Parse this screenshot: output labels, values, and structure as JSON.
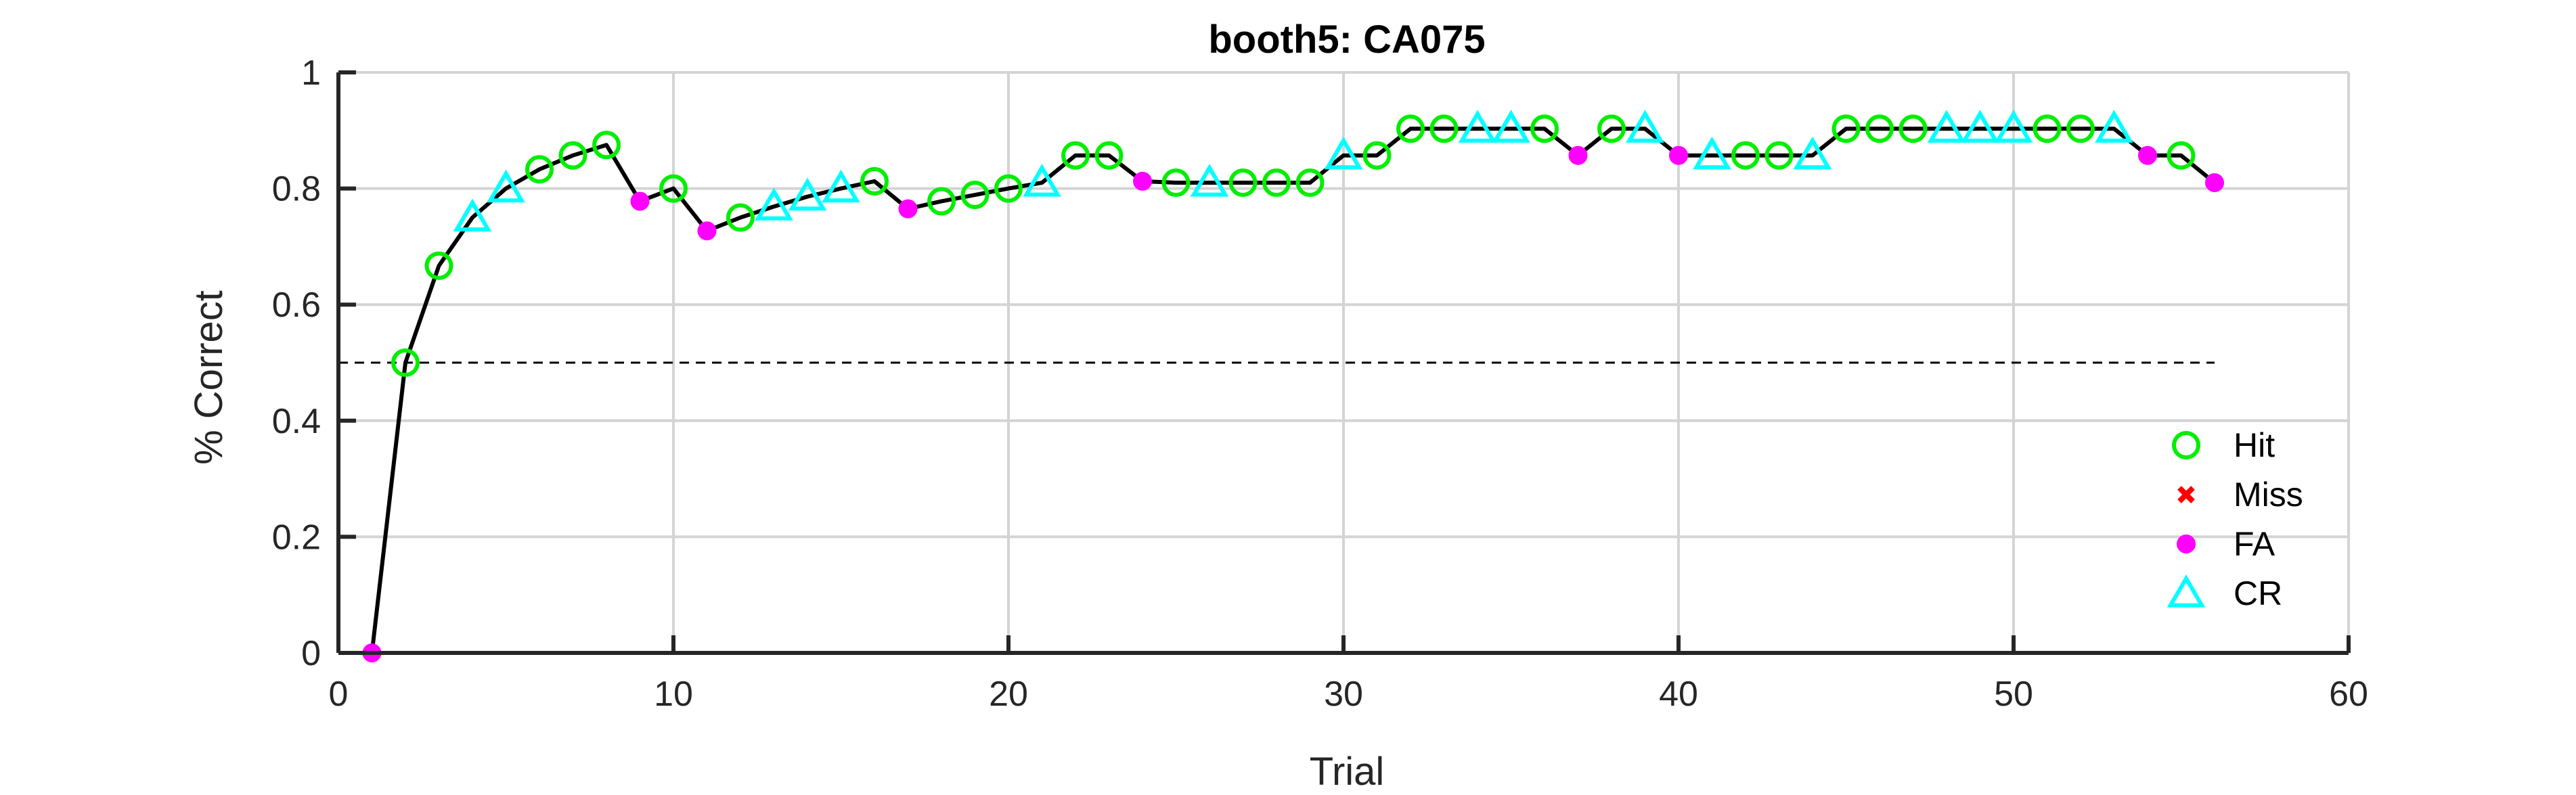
{
  "chart_data": {
    "type": "scatter",
    "title": "booth5: CA075",
    "xlabel": "Trial",
    "ylabel": "% Correct",
    "xlim": [
      0,
      60
    ],
    "ylim": [
      0,
      1
    ],
    "xticks": [
      0,
      10,
      20,
      30,
      40,
      50,
      60
    ],
    "xtick_labels": [
      "0",
      "10",
      "20",
      "30",
      "40",
      "50",
      "60"
    ],
    "yticks": [
      0,
      0.2,
      0.4,
      0.6,
      0.8,
      1
    ],
    "ytick_labels": [
      "0",
      "0.2",
      "0.4",
      "0.6",
      "0.8",
      "1"
    ],
    "grid": true,
    "chance_line": 0.5,
    "legend_position": "bottom-right",
    "colors": {
      "line": "#000000",
      "Hit": "#00ee00",
      "Miss": "#ff0000",
      "FA": "#ff00ff",
      "CR": "#00ffff",
      "grid": "#d4d4d4",
      "axis": "#262626"
    },
    "legend": [
      {
        "label": "Hit",
        "marker": "circle",
        "color": "#00ee00"
      },
      {
        "label": "Miss",
        "marker": "x",
        "color": "#ff0000"
      },
      {
        "label": "FA",
        "marker": "dot",
        "color": "#ff00ff"
      },
      {
        "label": "CR",
        "marker": "triangle",
        "color": "#00ffff"
      }
    ],
    "x": [
      1,
      2,
      3,
      4,
      5,
      6,
      7,
      8,
      9,
      10,
      11,
      12,
      13,
      14,
      15,
      16,
      17,
      18,
      19,
      20,
      21,
      22,
      23,
      24,
      25,
      26,
      27,
      28,
      29,
      30,
      31,
      32,
      33,
      34,
      35,
      36,
      37,
      38,
      39,
      40,
      41,
      42,
      43,
      44,
      45,
      46,
      47,
      48,
      49,
      50,
      51,
      52,
      53,
      54,
      55,
      56
    ],
    "y": [
      0,
      0.5,
      0.667,
      0.75,
      0.8,
      0.833,
      0.857,
      0.875,
      0.778,
      0.8,
      0.727,
      0.75,
      0.769,
      0.786,
      0.8,
      0.8125,
      0.765,
      0.778,
      0.789,
      0.8,
      0.81,
      0.857,
      0.857,
      0.8125,
      0.81,
      0.81,
      0.81,
      0.81,
      0.81,
      0.857,
      0.857,
      0.903,
      0.903,
      0.903,
      0.903,
      0.903,
      0.857,
      0.903,
      0.903,
      0.857,
      0.857,
      0.857,
      0.857,
      0.857,
      0.903,
      0.903,
      0.903,
      0.903,
      0.903,
      0.903,
      0.903,
      0.903,
      0.903,
      0.857,
      0.857,
      0.81
    ],
    "outcome": [
      "FA",
      "Hit",
      "Hit",
      "CR",
      "CR",
      "Hit",
      "Hit",
      "Hit",
      "FA",
      "Hit",
      "FA",
      "Hit",
      "CR",
      "CR",
      "CR",
      "Hit",
      "FA",
      "Hit",
      "Hit",
      "Hit",
      "CR",
      "Hit",
      "Hit",
      "FA",
      "Hit",
      "CR",
      "Hit",
      "Hit",
      "Hit",
      "CR",
      "Hit",
      "Hit",
      "Hit",
      "CR",
      "CR",
      "Hit",
      "FA",
      "Hit",
      "CR",
      "FA",
      "CR",
      "Hit",
      "Hit",
      "CR",
      "Hit",
      "Hit",
      "Hit",
      "CR",
      "CR",
      "CR",
      "Hit",
      "Hit",
      "CR",
      "FA",
      "Hit",
      "FA"
    ]
  }
}
